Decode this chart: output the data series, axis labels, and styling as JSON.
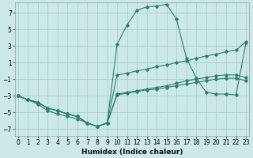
{
  "title": "",
  "xlabel": "Humidex (Indice chaleur)",
  "ylabel": "",
  "bg_color": "#cce8e8",
  "grid_color": "#aad0d0",
  "line_color": "#2e7d6e",
  "ylim": [
    -7.8,
    8.2
  ],
  "xlim": [
    -0.3,
    23.3
  ],
  "yticks": [
    -7,
    -5,
    -3,
    -1,
    1,
    3,
    5,
    7
  ],
  "xticks": [
    0,
    1,
    2,
    3,
    4,
    5,
    6,
    7,
    8,
    9,
    10,
    11,
    12,
    13,
    14,
    15,
    16,
    17,
    18,
    19,
    20,
    21,
    22,
    23
  ],
  "series": [
    {
      "x": [
        0,
        1,
        2,
        3,
        4,
        5,
        6,
        7,
        8,
        9,
        10,
        11,
        12,
        13,
        14,
        15,
        16,
        17,
        18,
        19,
        20,
        21,
        22,
        23
      ],
      "y": [
        -3.0,
        -3.5,
        -3.8,
        -4.5,
        -4.8,
        -5.2,
        -5.5,
        -6.3,
        -6.7,
        -6.3,
        -0.5,
        -0.3,
        -0.0,
        0.2,
        0.5,
        0.7,
        1.0,
        1.2,
        1.5,
        1.8,
        2.0,
        2.3,
        2.5,
        3.5
      ]
    },
    {
      "x": [
        0,
        1,
        2,
        3,
        4,
        5,
        6,
        7,
        8,
        9,
        10,
        11,
        12,
        13,
        14,
        15,
        16,
        17,
        18,
        19,
        20,
        21,
        22,
        23
      ],
      "y": [
        -3.0,
        -3.5,
        -3.8,
        -4.5,
        -4.8,
        -5.2,
        -5.5,
        -6.3,
        -6.7,
        -6.3,
        -2.8,
        -2.6,
        -2.4,
        -2.2,
        -2.0,
        -1.8,
        -1.5,
        -1.2,
        -1.0,
        -0.8,
        -0.6,
        -0.5,
        -0.5,
        -0.8
      ]
    },
    {
      "x": [
        0,
        1,
        2,
        3,
        4,
        5,
        6,
        7,
        8,
        9,
        10,
        11,
        12,
        13,
        14,
        15,
        16,
        17,
        18,
        19,
        20,
        21,
        22,
        23
      ],
      "y": [
        -3.0,
        -3.5,
        -3.8,
        -4.5,
        -4.8,
        -5.2,
        -5.5,
        -6.3,
        -6.7,
        -6.3,
        -2.9,
        -2.7,
        -2.5,
        -2.3,
        -2.2,
        -2.0,
        -1.8,
        -1.6,
        -1.4,
        -1.2,
        -1.0,
        -0.9,
        -0.9,
        -1.2
      ]
    },
    {
      "x": [
        0,
        1,
        2,
        3,
        4,
        5,
        6,
        7,
        8,
        9,
        10,
        11,
        12,
        13,
        14,
        15,
        16,
        17,
        18,
        19,
        20,
        21,
        22,
        23
      ],
      "y": [
        -3.0,
        -3.5,
        -4.0,
        -4.8,
        -5.2,
        -5.5,
        -5.8,
        -6.3,
        -6.7,
        -6.3,
        3.2,
        5.5,
        7.3,
        7.7,
        7.8,
        8.0,
        6.2,
        1.5,
        -0.9,
        -2.6,
        -2.8,
        -2.8,
        -2.9,
        3.4
      ]
    }
  ]
}
